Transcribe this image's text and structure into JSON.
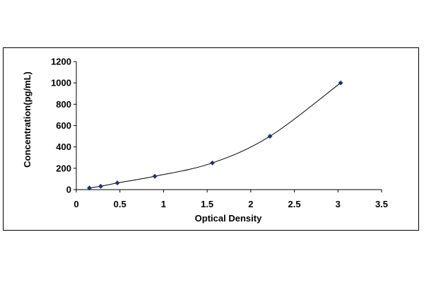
{
  "chart_data": {
    "type": "scatter",
    "title": "",
    "xlabel": "Optical Density",
    "ylabel": "Concentration(pg/mL)",
    "xlim": [
      0,
      3.5
    ],
    "ylim": [
      0,
      1200
    ],
    "x_ticks": [
      0,
      0.5,
      1,
      1.5,
      2,
      2.5,
      3,
      3.5
    ],
    "x_tick_labels": [
      "0",
      "0.5",
      "1",
      "1.5",
      "2",
      "2.5",
      "3",
      "3.5"
    ],
    "y_ticks": [
      0,
      200,
      400,
      600,
      800,
      1000,
      1200
    ],
    "y_tick_labels": [
      "0",
      "200",
      "400",
      "600",
      "800",
      "1000",
      "1200"
    ],
    "grid": false,
    "legend": "none",
    "series": [
      {
        "x": [
          0.15,
          0.28,
          0.47,
          0.9,
          1.56,
          2.22,
          3.03
        ],
        "y": [
          15.6,
          31.25,
          62.5,
          125,
          250,
          500,
          1000
        ],
        "marker": "diamond",
        "marker_color": "#1f2f7a",
        "trendline": "polynomial",
        "line_color": "#000000"
      }
    ]
  }
}
